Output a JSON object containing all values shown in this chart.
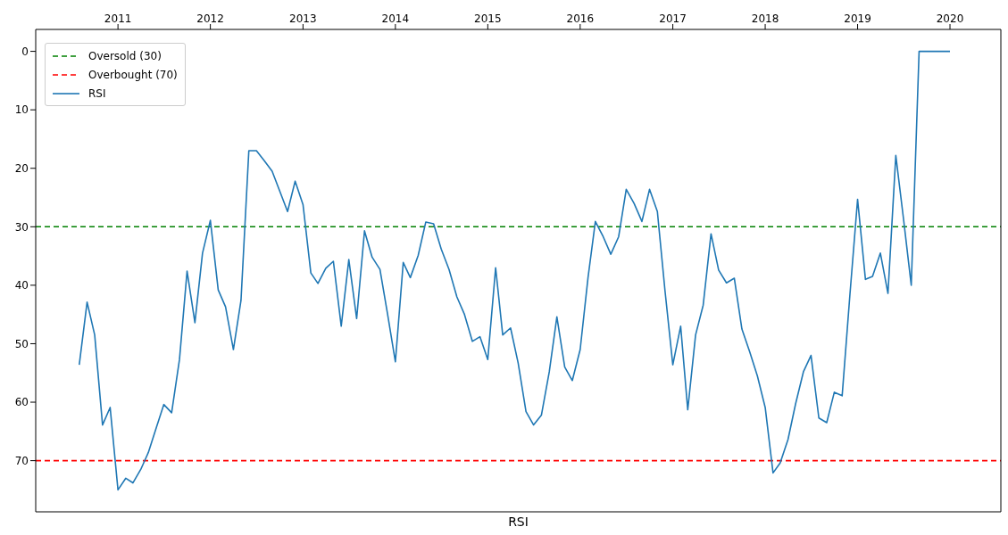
{
  "chart_data": {
    "type": "line",
    "xlabel": "RSI",
    "x": [
      "2010-08",
      "2010-09",
      "2010-10",
      "2010-11",
      "2010-12",
      "2011-01",
      "2011-02",
      "2011-03",
      "2011-04",
      "2011-05",
      "2011-06",
      "2011-07",
      "2011-08",
      "2011-09",
      "2011-10",
      "2011-11",
      "2011-12",
      "2012-01",
      "2012-02",
      "2012-03",
      "2012-04",
      "2012-05",
      "2012-06",
      "2012-07",
      "2012-08",
      "2012-09",
      "2012-10",
      "2012-11",
      "2012-12",
      "2013-01",
      "2013-02",
      "2013-03",
      "2013-04",
      "2013-05",
      "2013-06",
      "2013-07",
      "2013-08",
      "2013-09",
      "2013-10",
      "2013-11",
      "2013-12",
      "2014-01",
      "2014-02",
      "2014-03",
      "2014-04",
      "2014-05",
      "2014-06",
      "2014-07",
      "2014-08",
      "2014-09",
      "2014-10",
      "2014-11",
      "2014-12",
      "2015-01",
      "2015-02",
      "2015-03",
      "2015-04",
      "2015-05",
      "2015-06",
      "2015-07",
      "2015-08",
      "2015-09",
      "2015-10",
      "2015-11",
      "2015-12",
      "2016-01",
      "2016-02",
      "2016-03",
      "2016-04",
      "2016-05",
      "2016-06",
      "2016-07",
      "2016-08",
      "2016-09",
      "2016-10",
      "2016-11",
      "2016-12",
      "2017-01",
      "2017-02",
      "2017-03",
      "2017-04",
      "2017-05",
      "2017-06",
      "2017-07",
      "2017-08",
      "2017-09",
      "2017-10",
      "2017-11",
      "2017-12",
      "2018-01",
      "2018-02",
      "2018-03",
      "2018-04",
      "2018-05",
      "2018-06",
      "2018-07",
      "2018-08",
      "2018-09",
      "2018-10",
      "2018-11",
      "2018-12",
      "2019-01",
      "2019-02",
      "2019-03",
      "2019-04",
      "2019-05",
      "2019-06",
      "2019-07",
      "2019-08",
      "2019-09",
      "2019-10",
      "2019-11",
      "2019-12",
      "2020-01"
    ],
    "series": [
      {
        "name": "RSI",
        "color": "#1f77b4",
        "values": [
          53.6,
          42.9,
          48.5,
          63.9,
          60.9,
          75,
          73,
          73.8,
          71.5,
          68.6,
          64.4,
          60.4,
          61.8,
          52.7,
          37.6,
          46.4,
          34.5,
          28.9,
          40.8,
          43.7,
          51,
          42.6,
          17,
          17,
          18.7,
          20.5,
          23.9,
          27.4,
          22.2,
          26.2,
          37.9,
          39.7,
          37.1,
          35.9,
          47,
          35.6,
          45.7,
          30.7,
          35.2,
          37.3,
          44.9,
          53.1,
          36.1,
          38.7,
          34.9,
          29.2,
          29.5,
          33.8,
          37.3,
          42,
          45,
          49.6,
          48.8,
          52.7,
          37,
          48.5,
          47.3,
          53.3,
          61.6,
          63.9,
          62.2,
          54.8,
          45.4,
          54,
          56.3,
          51,
          38.7,
          29.1,
          31.7,
          34.7,
          31.7,
          23.6,
          26,
          29.1,
          23.6,
          27.4,
          40.9,
          53.6,
          47,
          61.3,
          48.5,
          43.4,
          31.2,
          37.4,
          39.6,
          38.8,
          47.5,
          51.4,
          55.5,
          60.9,
          72.1,
          70.4,
          66.4,
          60.3,
          54.8,
          52,
          62.7,
          63.5,
          58.3,
          58.9,
          42,
          25.3,
          39,
          38.5,
          34.5,
          41.4,
          17.8,
          28.5,
          40,
          0,
          0,
          0,
          0,
          0
        ]
      }
    ],
    "ref_lines": [
      {
        "axis": "y",
        "value": 30,
        "label": "Oversold (30)",
        "color": "#008000",
        "line_style": "dashed"
      },
      {
        "axis": "y",
        "value": 70,
        "label": "Overbought (70)",
        "color": "#ff0000",
        "line_style": "dashed"
      }
    ],
    "xlim": [
      "2010-02-10",
      "2020-07-20"
    ],
    "xticks": [
      "2011",
      "2012",
      "2013",
      "2014",
      "2015",
      "2016",
      "2017",
      "2018",
      "2019",
      "2020"
    ],
    "ylim": [
      78.75,
      -3.75
    ],
    "yticks": [
      0,
      10,
      20,
      30,
      40,
      50,
      60,
      70
    ],
    "grid": false,
    "legend": "top left",
    "line_style": "solid",
    "marker": "none"
  }
}
